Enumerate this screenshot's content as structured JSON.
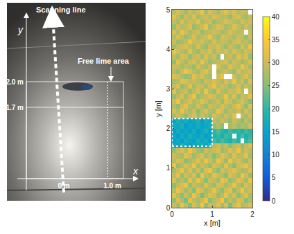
{
  "photo": {
    "scanning_line": "Scanning line",
    "y_axis": "y",
    "x_axis": "x",
    "free_lime_area": "Free lime area",
    "y_mark_high": "2.0 m",
    "y_mark_low": "1.7 m",
    "x_mark_start": "0 m",
    "x_mark_end": "1.0 m"
  },
  "chart_data": {
    "type": "heatmap",
    "xlabel": "x [m]",
    "ylabel": "y [m]",
    "xlim": [
      0,
      2
    ],
    "ylim": [
      0,
      5
    ],
    "xticks": [
      0,
      1,
      2
    ],
    "yticks": [
      0,
      1,
      2,
      3,
      4,
      5
    ],
    "colorbar": {
      "range": [
        0,
        40
      ],
      "ticks": [
        0,
        5,
        10,
        15,
        20,
        25,
        30,
        35,
        40
      ]
    },
    "highlight": {
      "x": [
        0,
        1
      ],
      "y": [
        1.55,
        2.25
      ]
    },
    "x": [
      0.05,
      0.15,
      0.25,
      0.35,
      0.45,
      0.55,
      0.65,
      0.75,
      0.85,
      0.95,
      1.05,
      1.15,
      1.25,
      1.35,
      1.45,
      1.55,
      1.65,
      1.75,
      1.85,
      1.95
    ],
    "y": [
      0.0625,
      0.1875,
      0.3125,
      0.4375,
      0.5625,
      0.6875,
      0.8125,
      0.9375,
      1.0625,
      1.1875,
      1.3125,
      1.4375,
      1.5625,
      1.6875,
      1.8125,
      1.9375,
      2.0625,
      2.1875,
      2.3125,
      2.4375,
      2.5625,
      2.6875,
      2.8125,
      2.9375,
      3.0625,
      3.1875,
      3.3125,
      3.4375,
      3.5625,
      3.6875,
      3.8125,
      3.9375,
      4.0625,
      4.1875,
      4.3125,
      4.4375,
      4.5625,
      4.6875,
      4.8125,
      4.9375
    ],
    "z": [
      [
        30,
        27,
        33,
        29,
        25,
        31,
        28,
        34,
        26,
        30,
        29,
        32,
        27,
        31,
        24,
        30,
        33,
        28,
        29,
        31
      ],
      [
        26,
        31,
        28,
        24,
        32,
        29,
        27,
        30,
        33,
        25,
        28,
        30,
        34,
        26,
        29,
        27,
        31,
        30,
        25,
        28
      ],
      [
        32,
        28,
        25,
        30,
        27,
        33,
        29,
        24,
        28,
        31,
        30,
        26,
        29,
        33,
        28,
        31,
        25,
        29,
        32,
        27
      ],
      [
        28,
        33,
        30,
        27,
        29,
        25,
        32,
        30,
        27,
        29,
        33,
        28,
        25,
        30,
        32,
        26,
        29,
        34,
        28,
        30
      ],
      [
        25,
        29,
        31,
        33,
        26,
        30,
        28,
        27,
        32,
        28,
        26,
        31,
        30,
        27,
        29,
        33,
        28,
        26,
        31,
        29
      ],
      [
        31,
        27,
        29,
        26,
        32,
        28,
        33,
        29,
        25,
        30,
        29,
        27,
        33,
        31,
        26,
        28,
        32,
        30,
        27,
        33
      ],
      [
        29,
        32,
        26,
        30,
        28,
        31,
        25,
        33,
        29,
        27,
        32,
        30,
        28,
        25,
        31,
        29,
        27,
        33,
        30,
        26
      ],
      [
        27,
        30,
        33,
        28,
        31,
        27,
        30,
        26,
        31,
        33,
        28,
        25,
        31,
        29,
        30,
        32,
        29,
        27,
        28,
        31
      ],
      [
        33,
        26,
        28,
        31,
        29,
        33,
        27,
        30,
        28,
        26,
        31,
        29,
        27,
        32,
        28,
        25,
        30,
        31,
        33,
        29
      ],
      [
        28,
        31,
        30,
        25,
        27,
        29,
        32,
        28,
        33,
        30,
        27,
        33,
        30,
        26,
        33,
        29,
        31,
        28,
        26,
        30
      ],
      [
        30,
        28,
        27,
        32,
        30,
        26,
        29,
        31,
        27,
        29,
        25,
        28,
        32,
        30,
        27,
        31,
        28,
        29,
        32,
        27
      ],
      [
        26,
        29,
        31,
        28,
        33,
        30,
        27,
        25,
        30,
        28,
        30,
        31,
        26,
        28,
        31,
        29,
        33,
        27,
        30,
        28
      ],
      [
        17,
        15,
        18,
        16,
        14,
        17,
        16,
        18,
        15,
        19,
        28,
        30,
        27,
        29,
        25,
        28,
        30,
        26,
        29,
        31
      ],
      [
        15,
        16,
        14,
        17,
        16,
        15,
        18,
        16,
        17,
        15,
        21,
        19,
        22,
        20,
        18,
        21,
        19,
        null,
        20,
        22
      ],
      [
        16,
        14,
        17,
        15,
        18,
        16,
        15,
        17,
        14,
        16,
        19,
        20,
        18,
        21,
        20,
        null,
        19,
        22,
        18,
        20
      ],
      [
        14,
        17,
        15,
        16,
        15,
        17,
        14,
        16,
        18,
        15,
        20,
        22,
        19,
        18,
        21,
        19,
        20,
        18,
        21,
        19
      ],
      [
        17,
        16,
        18,
        14,
        16,
        15,
        17,
        15,
        16,
        17,
        26,
        28,
        25,
        null,
        27,
        29,
        26,
        28,
        27,
        30
      ],
      [
        15,
        18,
        16,
        17,
        15,
        16,
        18,
        14,
        17,
        16,
        29,
        27,
        30,
        28,
        26,
        30,
        28,
        25,
        29,
        27
      ],
      [
        27,
        30,
        28,
        26,
        29,
        31,
        27,
        30,
        28,
        26,
        31,
        29,
        27,
        30,
        28,
        32,
        null,
        29,
        27,
        30
      ],
      [
        31,
        28,
        33,
        29,
        27,
        30,
        25,
        29,
        31,
        28,
        27,
        33,
        30,
        26,
        29,
        28,
        30,
        27,
        31,
        28
      ],
      [
        28,
        26,
        30,
        32,
        28,
        27,
        31,
        28,
        26,
        30,
        29,
        28,
        31,
        29,
        27,
        30,
        33,
        29,
        26,
        31
      ],
      [
        30,
        33,
        27,
        29,
        31,
        28,
        29,
        32,
        30,
        27,
        28,
        30,
        26,
        31,
        30,
        27,
        29,
        31,
        28,
        25
      ],
      [
        26,
        29,
        31,
        27,
        30,
        33,
        26,
        28,
        29,
        31,
        30,
        27,
        29,
        33,
        28,
        31,
        26,
        30,
        29,
        32
      ],
      [
        32,
        27,
        29,
        30,
        26,
        29,
        31,
        27,
        33,
        28,
        26,
        31,
        28,
        27,
        30,
        29,
        32,
        28,
        null,
        29
      ],
      [
        29,
        31,
        26,
        28,
        32,
        27,
        30,
        29,
        27,
        30,
        33,
        28,
        30,
        29,
        26,
        28,
        31,
        27,
        30,
        28
      ],
      [
        27,
        28,
        32,
        31,
        29,
        30,
        28,
        26,
        30,
        29,
        31,
        29,
        27,
        31,
        29,
        33,
        28,
        30,
        26,
        31
      ],
      [
        31,
        30,
        28,
        26,
        27,
        32,
        29,
        31,
        28,
        27,
        null,
        30,
        33,
        null,
        null,
        30,
        27,
        29,
        31,
        28
      ],
      [
        28,
        26,
        30,
        33,
        31,
        28,
        27,
        30,
        32,
        29,
        null,
        27,
        29,
        30,
        28,
        26,
        31,
        28,
        29,
        30
      ],
      [
        30,
        29,
        27,
        29,
        28,
        26,
        31,
        28,
        27,
        30,
        null,
        31,
        28,
        27,
        32,
        29,
        28,
        33,
        30,
        27
      ],
      [
        26,
        32,
        29,
        27,
        30,
        31,
        28,
        33,
        29,
        26,
        28,
        29,
        30,
        31,
        27,
        30,
        29,
        26,
        28,
        31
      ],
      [
        29,
        27,
        31,
        30,
        26,
        29,
        30,
        27,
        31,
        28,
        30,
        26,
        null,
        28,
        30,
        27,
        32,
        29,
        31,
        26
      ],
      [
        33,
        30,
        28,
        27,
        32,
        28,
        26,
        30,
        29,
        31,
        27,
        30,
        29,
        31,
        28,
        31,
        29,
        27,
        30,
        29
      ],
      [
        27,
        29,
        30,
        31,
        29,
        27,
        31,
        28,
        26,
        30,
        29,
        31,
        28,
        26,
        30,
        28,
        26,
        31,
        28,
        33
      ],
      [
        30,
        26,
        27,
        29,
        33,
        30,
        29,
        31,
        28,
        27,
        31,
        28,
        30,
        29,
        27,
        30,
        31,
        28,
        29,
        27
      ],
      [
        28,
        31,
        29,
        26,
        28,
        31,
        27,
        29,
        30,
        33,
        28,
        26,
        31,
        30,
        29,
        27,
        30,
        29,
        26,
        30
      ],
      [
        31,
        28,
        33,
        30,
        27,
        29,
        30,
        26,
        28,
        29,
        30,
        29,
        27,
        28,
        31,
        29,
        28,
        30,
        null,
        29
      ],
      [
        26,
        30,
        28,
        29,
        31,
        26,
        28,
        30,
        33,
        27,
        29,
        31,
        30,
        27,
        28,
        32,
        29,
        27,
        30,
        28
      ],
      [
        29,
        27,
        31,
        28,
        30,
        29,
        32,
        27,
        29,
        30,
        26,
        28,
        29,
        31,
        30,
        28,
        27,
        31,
        29,
        30
      ],
      [
        32,
        29,
        26,
        30,
        28,
        31,
        27,
        29,
        30,
        28,
        31,
        30,
        28,
        29,
        26,
        30,
        31,
        28,
        27,
        29
      ],
      [
        28,
        31,
        29,
        27,
        30,
        28,
        30,
        33,
        27,
        31,
        29,
        27,
        30,
        32,
        29,
        31,
        28,
        30,
        29,
        null
      ]
    ]
  }
}
